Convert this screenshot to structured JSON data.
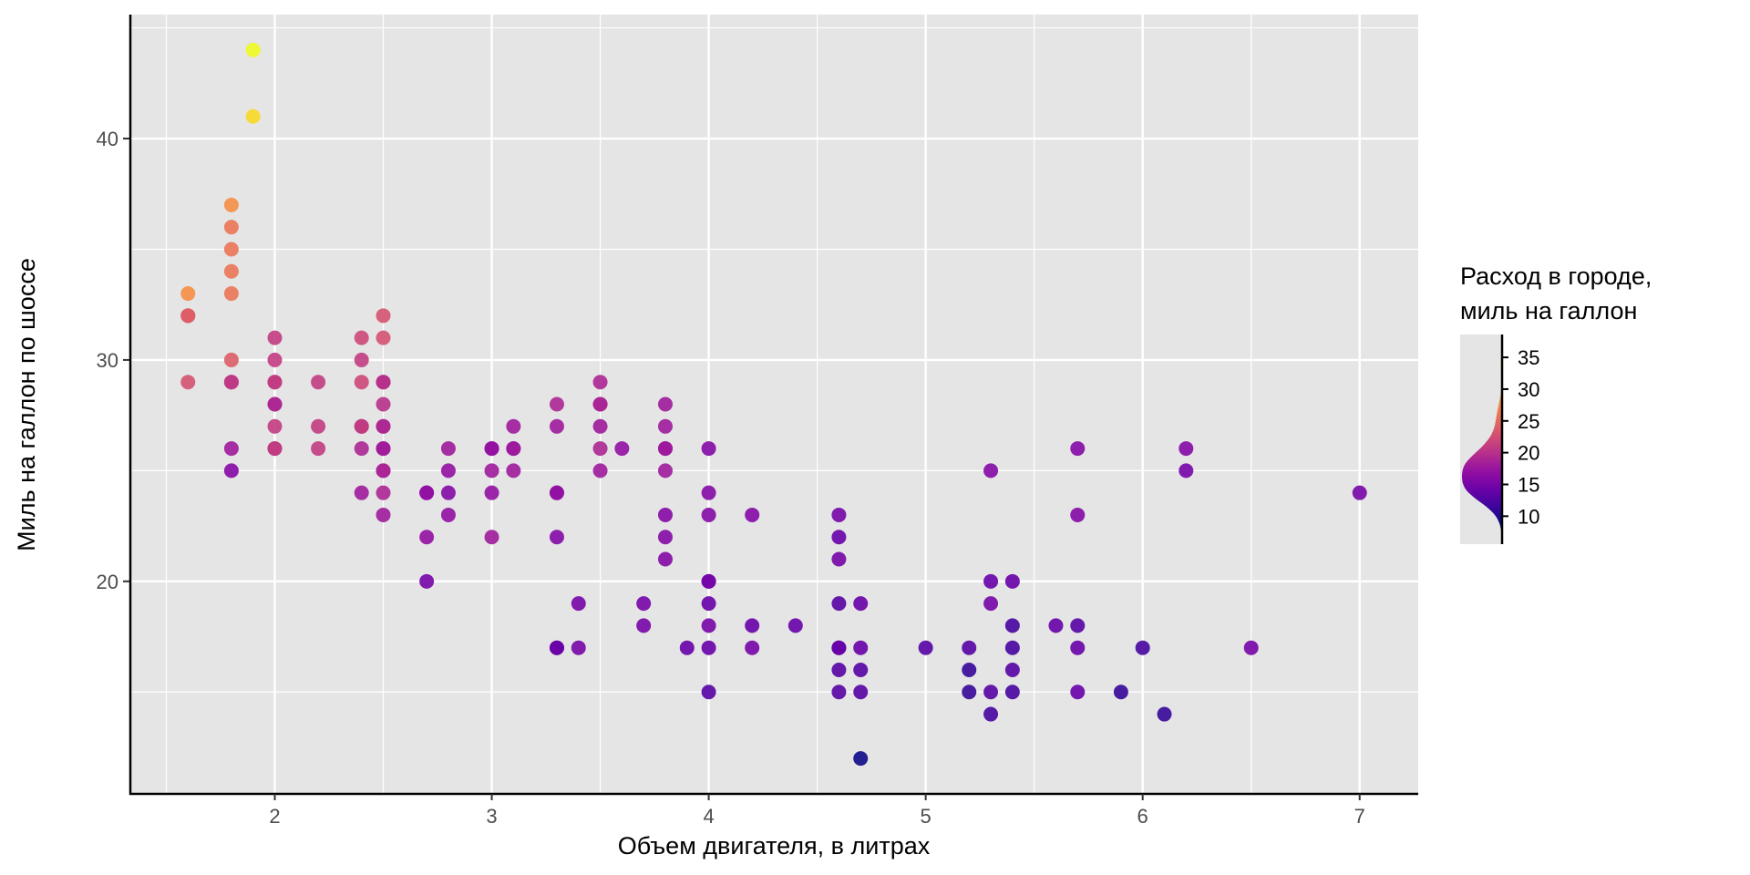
{
  "chart_data": {
    "type": "scatter",
    "title": "",
    "xlabel": "Объем двигателя, в литрах",
    "ylabel": "Миль на галлон по шоссе",
    "xlim": [
      1.33,
      7.27
    ],
    "ylim": [
      10.4,
      45.6
    ],
    "x_ticks": [
      2,
      3,
      4,
      5,
      6,
      7
    ],
    "y_ticks": [
      20,
      30,
      40
    ],
    "grid": true,
    "color_scale": {
      "name": "plasma",
      "title_lines": [
        "Расход в городе,",
        "миль на галлон"
      ],
      "variable_range": [
        9,
        35
      ],
      "legend_ticks": [
        10,
        15,
        20,
        25,
        30,
        35
      ],
      "legend_range": [
        5.6,
        38.6
      ],
      "legend_style": "density",
      "placement": "right",
      "stops": [
        "#0d0887",
        "#41049d",
        "#6a00a8",
        "#8f0da4",
        "#b12a90",
        "#cc4778",
        "#e16462",
        "#f2844b",
        "#fca636",
        "#fcce25",
        "#f0f921"
      ]
    },
    "points_columns": [
      "displ",
      "hwy",
      "cty"
    ],
    "points": [
      [
        1.6,
        33,
        28
      ],
      [
        1.6,
        32,
        24
      ],
      [
        1.6,
        32,
        25
      ],
      [
        1.6,
        29,
        23
      ],
      [
        1.6,
        32,
        24
      ],
      [
        1.8,
        37,
        28
      ],
      [
        1.8,
        36,
        26
      ],
      [
        1.8,
        35,
        26
      ],
      [
        1.8,
        34,
        26
      ],
      [
        1.8,
        33,
        26
      ],
      [
        1.8,
        30,
        24
      ],
      [
        1.8,
        29,
        18
      ],
      [
        1.8,
        29,
        21
      ],
      [
        1.8,
        26,
        18
      ],
      [
        1.8,
        25,
        16
      ],
      [
        1.9,
        44,
        35
      ],
      [
        1.9,
        41,
        33
      ],
      [
        2.0,
        31,
        21
      ],
      [
        2.0,
        30,
        21
      ],
      [
        2.0,
        29,
        20
      ],
      [
        2.0,
        29,
        21
      ],
      [
        2.0,
        28,
        20
      ],
      [
        2.0,
        28,
        19
      ],
      [
        2.0,
        27,
        21
      ],
      [
        2.0,
        26,
        19
      ],
      [
        2.0,
        26,
        21
      ],
      [
        2.2,
        29,
        21
      ],
      [
        2.2,
        27,
        21
      ],
      [
        2.2,
        26,
        21
      ],
      [
        2.4,
        31,
        22
      ],
      [
        2.4,
        30,
        21
      ],
      [
        2.4,
        29,
        22
      ],
      [
        2.4,
        27,
        19
      ],
      [
        2.4,
        27,
        21
      ],
      [
        2.4,
        26,
        19
      ],
      [
        2.4,
        24,
        18
      ],
      [
        2.5,
        32,
        23
      ],
      [
        2.5,
        31,
        23
      ],
      [
        2.5,
        29,
        19
      ],
      [
        2.5,
        29,
        20
      ],
      [
        2.5,
        28,
        20
      ],
      [
        2.5,
        27,
        20
      ],
      [
        2.5,
        27,
        19
      ],
      [
        2.5,
        26,
        19
      ],
      [
        2.5,
        26,
        18
      ],
      [
        2.5,
        25,
        18
      ],
      [
        2.5,
        25,
        19
      ],
      [
        2.5,
        24,
        19
      ],
      [
        2.5,
        23,
        18
      ],
      [
        2.7,
        24,
        16
      ],
      [
        2.7,
        24,
        17
      ],
      [
        2.7,
        22,
        17
      ],
      [
        2.7,
        20,
        15
      ],
      [
        2.8,
        26,
        18
      ],
      [
        2.8,
        25,
        17
      ],
      [
        2.8,
        24,
        16
      ],
      [
        2.8,
        23,
        17
      ],
      [
        3.0,
        26,
        18
      ],
      [
        3.0,
        26,
        17
      ],
      [
        3.0,
        25,
        18
      ],
      [
        3.0,
        24,
        17
      ],
      [
        3.0,
        22,
        18
      ],
      [
        3.1,
        27,
        18
      ],
      [
        3.1,
        26,
        17
      ],
      [
        3.1,
        26,
        18
      ],
      [
        3.1,
        25,
        18
      ],
      [
        3.3,
        28,
        19
      ],
      [
        3.3,
        27,
        18
      ],
      [
        3.3,
        24,
        16
      ],
      [
        3.3,
        24,
        17
      ],
      [
        3.3,
        22,
        16
      ],
      [
        3.3,
        17,
        15
      ],
      [
        3.3,
        17,
        14
      ],
      [
        3.4,
        19,
        15
      ],
      [
        3.4,
        17,
        15
      ],
      [
        3.5,
        29,
        19
      ],
      [
        3.5,
        28,
        18
      ],
      [
        3.5,
        28,
        19
      ],
      [
        3.5,
        27,
        18
      ],
      [
        3.5,
        26,
        19
      ],
      [
        3.5,
        25,
        18
      ],
      [
        3.6,
        26,
        17
      ],
      [
        3.7,
        19,
        15
      ],
      [
        3.7,
        18,
        15
      ],
      [
        3.8,
        28,
        18
      ],
      [
        3.8,
        27,
        18
      ],
      [
        3.8,
        26,
        17
      ],
      [
        3.8,
        26,
        18
      ],
      [
        3.8,
        25,
        18
      ],
      [
        3.8,
        23,
        16
      ],
      [
        3.8,
        22,
        16
      ],
      [
        3.8,
        21,
        16
      ],
      [
        3.9,
        17,
        14
      ],
      [
        4.0,
        26,
        16
      ],
      [
        4.0,
        24,
        16
      ],
      [
        4.0,
        23,
        16
      ],
      [
        4.0,
        20,
        14
      ],
      [
        4.0,
        20,
        15
      ],
      [
        4.0,
        19,
        14
      ],
      [
        4.0,
        18,
        15
      ],
      [
        4.0,
        17,
        14
      ],
      [
        4.0,
        15,
        13
      ],
      [
        4.2,
        23,
        16
      ],
      [
        4.2,
        18,
        14
      ],
      [
        4.2,
        17,
        15
      ],
      [
        4.4,
        18,
        14
      ],
      [
        4.6,
        23,
        15
      ],
      [
        4.6,
        22,
        14
      ],
      [
        4.6,
        21,
        15
      ],
      [
        4.6,
        19,
        13
      ],
      [
        4.6,
        17,
        13
      ],
      [
        4.6,
        17,
        14
      ],
      [
        4.6,
        16,
        13
      ],
      [
        4.6,
        15,
        13
      ],
      [
        4.7,
        19,
        14
      ],
      [
        4.7,
        17,
        14
      ],
      [
        4.7,
        16,
        13
      ],
      [
        4.7,
        15,
        13
      ],
      [
        4.7,
        12,
        9
      ],
      [
        5.0,
        17,
        13
      ],
      [
        5.2,
        17,
        13
      ],
      [
        5.2,
        16,
        11
      ],
      [
        5.2,
        15,
        11
      ],
      [
        5.3,
        25,
        16
      ],
      [
        5.3,
        20,
        14
      ],
      [
        5.3,
        19,
        15
      ],
      [
        5.3,
        15,
        13
      ],
      [
        5.3,
        14,
        12
      ],
      [
        5.4,
        20,
        14
      ],
      [
        5.4,
        18,
        12
      ],
      [
        5.4,
        17,
        12
      ],
      [
        5.4,
        16,
        13
      ],
      [
        5.4,
        15,
        12
      ],
      [
        5.6,
        18,
        14
      ],
      [
        5.7,
        26,
        16
      ],
      [
        5.7,
        23,
        16
      ],
      [
        5.7,
        18,
        13
      ],
      [
        5.7,
        17,
        14
      ],
      [
        5.7,
        15,
        14
      ],
      [
        5.9,
        15,
        11
      ],
      [
        6.0,
        17,
        12
      ],
      [
        6.1,
        14,
        11
      ],
      [
        6.2,
        26,
        16
      ],
      [
        6.2,
        25,
        15
      ],
      [
        6.5,
        17,
        15
      ],
      [
        7.0,
        24,
        15
      ]
    ]
  }
}
